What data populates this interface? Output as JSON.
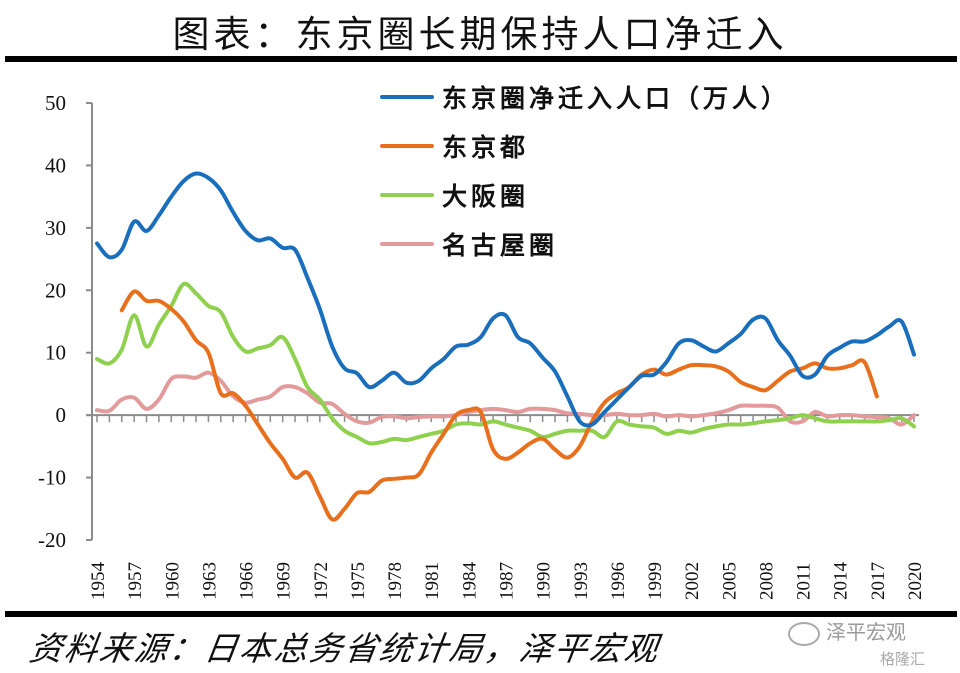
{
  "title": "图表：东京圈长期保持人口净迁入",
  "source": "资料来源：日本总务省统计局，泽平宏观",
  "watermarks": {
    "wechat": "泽平宏观",
    "gelonghui": "格隆汇"
  },
  "chart_data": {
    "type": "line",
    "title": "图表：东京圈长期保持人口净迁入",
    "xlabel": "",
    "ylabel": "",
    "ylim": [
      -20,
      50
    ],
    "yticks": [
      -20,
      -10,
      0,
      10,
      20,
      30,
      40,
      50
    ],
    "xlim": [
      1954,
      2020
    ],
    "xticks": [
      1954,
      1957,
      1960,
      1963,
      1966,
      1969,
      1972,
      1975,
      1978,
      1981,
      1984,
      1987,
      1990,
      1993,
      1996,
      1999,
      2002,
      2005,
      2008,
      2011,
      2014,
      2017,
      2020
    ],
    "grid": false,
    "legend_position": "top-right",
    "series": [
      {
        "name": "东京圈净迁入人口（万人）",
        "color": "#1a6fbd",
        "start_year": 1954,
        "values": [
          27.5,
          25.3,
          26.5,
          31,
          29.5,
          32,
          35,
          37.5,
          38.7,
          38,
          36,
          32.5,
          29.5,
          28,
          28.3,
          26.8,
          26.5,
          22,
          17,
          11,
          7.5,
          6.7,
          4.5,
          5.5,
          6.8,
          5.2,
          5.5,
          7.5,
          9,
          11,
          11.3,
          12.5,
          15.5,
          16,
          12.5,
          11.5,
          9.2,
          7,
          3,
          -1,
          -1.5,
          0.5,
          2.5,
          4.5,
          6.3,
          6.5,
          8.5,
          11.5,
          12,
          11,
          10.2,
          11.5,
          13,
          15.3,
          15.5,
          12,
          9.5,
          6.3,
          6.5,
          9.5,
          10.8,
          11.8,
          11.8,
          12.8,
          14.2,
          15,
          9.7
        ]
      },
      {
        "name": "东京都",
        "color": "#e86f1c",
        "start_year": 1956,
        "values": [
          16.8,
          19.8,
          18.3,
          18.3,
          17,
          15,
          12,
          10,
          3.5,
          3.5,
          1.5,
          -1.5,
          -4.5,
          -7,
          -10,
          -9.2,
          -13,
          -16.7,
          -15,
          -12.5,
          -12.3,
          -10.5,
          -10.2,
          -10,
          -9.5,
          -6,
          -3,
          0,
          0.8,
          0.5,
          -5.5,
          -7,
          -6,
          -4.5,
          -3.8,
          -5.5,
          -6.8,
          -5,
          -1,
          2,
          3.5,
          4.5,
          6.5,
          7.3,
          6.5,
          7.3,
          8,
          8,
          7.8,
          7,
          5.3,
          4.5,
          4,
          5.5,
          7,
          7.5,
          8.3,
          7.5,
          7.5,
          8,
          8.5,
          3
        ]
      },
      {
        "name": "大阪圈",
        "color": "#8fd14f",
        "start_year": 1954,
        "values": [
          9,
          8.3,
          10.5,
          16,
          11,
          14.5,
          17.5,
          21,
          19.5,
          17.5,
          16.5,
          12.5,
          10.2,
          10.7,
          11.2,
          12.5,
          9,
          4.5,
          2.5,
          -0.5,
          -2.5,
          -3.5,
          -4.5,
          -4.3,
          -3.8,
          -4,
          -3.5,
          -3,
          -2.5,
          -1.5,
          -1.3,
          -1.5,
          -1,
          -1.5,
          -2,
          -2.5,
          -3.5,
          -3,
          -2.5,
          -2.5,
          -2.5,
          -3.5,
          -1,
          -1.5,
          -1.8,
          -2,
          -3,
          -2.5,
          -2.8,
          -2.2,
          -1.8,
          -1.5,
          -1.5,
          -1.3,
          -1,
          -0.8,
          -0.5,
          0,
          -0.5,
          -1,
          -1,
          -1,
          -1,
          -1,
          -0.8,
          -0.5,
          -1.8
        ]
      },
      {
        "name": "名古屋圈",
        "color": "#e39a9b",
        "start_year": 1954,
        "values": [
          0.8,
          0.7,
          2.5,
          2.8,
          1,
          2.5,
          5.8,
          6.2,
          6,
          6.8,
          5.5,
          3,
          2,
          2.5,
          3,
          4.5,
          4.5,
          3.5,
          2,
          1.8,
          0.2,
          -1,
          -1.2,
          -0.3,
          -0.2,
          -0.5,
          -0.3,
          -0.2,
          -0.2,
          0,
          0.5,
          0.8,
          1,
          0.8,
          0.5,
          1,
          1,
          0.8,
          0.3,
          0.2,
          0,
          0,
          0.2,
          0,
          0,
          0.2,
          -0.2,
          0,
          -0.2,
          0,
          0.3,
          0.8,
          1.5,
          1.5,
          1.5,
          1.2,
          -1,
          -1,
          0.5,
          -0.2,
          0,
          0,
          -0.2,
          -0.3,
          -0.5,
          -1.5,
          0
        ]
      }
    ]
  }
}
